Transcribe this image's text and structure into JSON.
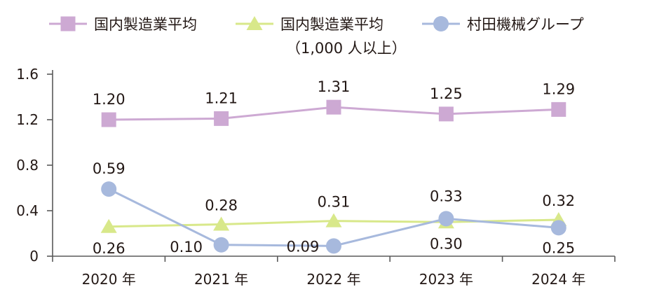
{
  "chart_data": {
    "type": "line",
    "categories": [
      "2020 年",
      "2021 年",
      "2022 年",
      "2023 年",
      "2024 年"
    ],
    "ylim": [
      0,
      1.6
    ],
    "y_ticks": [
      "0",
      "0.4",
      "0.8",
      "1.2",
      "1.6"
    ],
    "y_tick_values": [
      0,
      0.4,
      0.8,
      1.2,
      1.6
    ],
    "grid": false,
    "legend_position": "top",
    "series": [
      {
        "name": "国内製造業平均",
        "marker": "square",
        "color": "#cda9d3",
        "values": [
          1.2,
          1.21,
          1.31,
          1.25,
          1.29
        ],
        "labels": [
          "1.20",
          "1.21",
          "1.31",
          "1.25",
          "1.29"
        ]
      },
      {
        "name": "国内製造業平均",
        "name_line2": "（1,000 人以上）",
        "marker": "triangle",
        "color": "#d8e88a",
        "values": [
          0.26,
          0.28,
          0.31,
          0.3,
          0.32
        ],
        "labels": [
          "0.26",
          "0.28",
          "0.31",
          "0.30",
          "0.32"
        ]
      },
      {
        "name": "村田機械グループ",
        "marker": "circle",
        "color": "#a7b9dd",
        "values": [
          0.59,
          0.1,
          0.09,
          0.33,
          0.25
        ],
        "labels": [
          "0.59",
          "0.10",
          "0.09",
          "0.33",
          "0.25"
        ]
      }
    ]
  }
}
